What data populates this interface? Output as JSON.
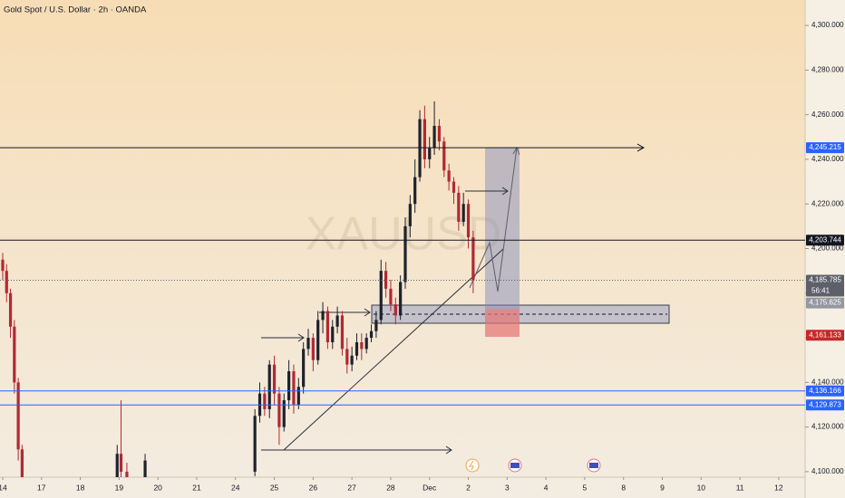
{
  "chart_data": {
    "type": "candlestick",
    "title": "Gold Spot / U.S. Dollar · 2h · OANDA",
    "watermark": "XAUUSD",
    "up_color": "#1e222d",
    "down_color": "#b22833",
    "xlim": [
      -0.07,
      20.68
    ],
    "ylim": [
      4088.2,
      4311.4
    ],
    "xticks": [
      {
        "value": 0,
        "label": "14"
      },
      {
        "value": 1,
        "label": "17"
      },
      {
        "value": 2,
        "label": "18"
      },
      {
        "value": 3,
        "label": "19"
      },
      {
        "value": 4,
        "label": "20"
      },
      {
        "value": 5,
        "label": "21"
      },
      {
        "value": 6,
        "label": "24"
      },
      {
        "value": 7,
        "label": "25"
      },
      {
        "value": 8,
        "label": "26"
      },
      {
        "value": 9,
        "label": "27"
      },
      {
        "value": 10,
        "label": "28"
      },
      {
        "value": 11,
        "label": "Dec"
      },
      {
        "value": 12,
        "label": "2"
      },
      {
        "value": 13,
        "label": "3"
      },
      {
        "value": 14,
        "label": "4"
      },
      {
        "value": 15,
        "label": "5"
      },
      {
        "value": 16,
        "label": "8"
      },
      {
        "value": 17,
        "label": "9"
      },
      {
        "value": 18,
        "label": "10"
      },
      {
        "value": 19,
        "label": "11"
      },
      {
        "value": 20,
        "label": "12"
      }
    ],
    "yticks": [
      {
        "value": 4100,
        "label": "4,100.000"
      },
      {
        "value": 4120,
        "label": "4,120.000"
      },
      {
        "value": 4140,
        "label": "4,140.000"
      },
      {
        "value": 4160,
        "label": "4,160.000"
      },
      {
        "value": 4180,
        "label": "4,180.000"
      },
      {
        "value": 4200,
        "label": "4,200.000"
      },
      {
        "value": 4220,
        "label": "4,220.000"
      },
      {
        "value": 4240,
        "label": "4,240.000"
      },
      {
        "value": 4260,
        "label": "4,260.000"
      },
      {
        "value": 4280,
        "label": "4,280.000"
      },
      {
        "value": 4300,
        "label": "4,300.000"
      }
    ],
    "x": [
      0,
      0.1,
      0.2,
      0.3,
      0.4,
      0.5,
      2.95,
      3.05,
      3.2,
      3.67,
      6.5,
      6.625,
      6.75,
      6.875,
      7,
      7.125,
      7.25,
      7.375,
      7.5,
      7.625,
      7.75,
      7.875,
      8,
      8.125,
      8.25,
      8.375,
      8.5,
      8.625,
      8.75,
      8.875,
      9,
      9.125,
      9.25,
      9.375,
      9.5,
      9.625,
      9.75,
      9.875,
      10,
      10.125,
      10.25,
      10.375,
      10.5,
      10.625,
      10.75,
      10.875,
      11,
      11.125,
      11.25,
      11.375,
      11.5,
      11.625,
      11.75,
      11.875,
      12,
      12.125
    ],
    "open": [
      4195,
      4190,
      4180,
      4165,
      4140,
      4110,
      4095,
      4108,
      4100,
      4095,
      4100,
      4125,
      4135,
      4128,
      4148,
      4135,
      4120,
      4132,
      4145,
      4130,
      4138,
      4155,
      4160,
      4150,
      4168,
      4172,
      4158,
      4165,
      4170,
      4155,
      4148,
      4152,
      4158,
      4155,
      4160,
      4163,
      4168,
      4190,
      4182,
      4175,
      4170,
      4185,
      4210,
      4220,
      4232,
      4258,
      4240,
      4245,
      4255,
      4248,
      4235,
      4230,
      4225,
      4212,
      4220,
      4205
    ],
    "high": [
      4198,
      4193,
      4182,
      4168,
      4142,
      4112,
      4112,
      4132,
      4104,
      4108,
      4128,
      4140,
      4138,
      4150,
      4152,
      4138,
      4135,
      4150,
      4148,
      4142,
      4158,
      4164,
      4162,
      4172,
      4176,
      4174,
      4168,
      4174,
      4172,
      4160,
      4156,
      4162,
      4162,
      4162,
      4166,
      4172,
      4195,
      4194,
      4186,
      4178,
      4188,
      4214,
      4224,
      4240,
      4262,
      4264,
      4250,
      4266,
      4258,
      4250,
      4238,
      4232,
      4228,
      4225,
      4222,
      4208
    ],
    "low": [
      4186,
      4176,
      4160,
      4135,
      4105,
      4090,
      4090,
      4095,
      4092,
      4090,
      4098,
      4122,
      4125,
      4124,
      4130,
      4112,
      4118,
      4128,
      4126,
      4128,
      4135,
      4152,
      4145,
      4148,
      4162,
      4155,
      4155,
      4162,
      4152,
      4144,
      4145,
      4150,
      4150,
      4153,
      4158,
      4160,
      4166,
      4178,
      4172,
      4166,
      4168,
      4182,
      4205,
      4216,
      4230,
      4236,
      4236,
      4242,
      4244,
      4232,
      4226,
      4220,
      4208,
      4210,
      4200,
      4180
    ],
    "close": [
      4190,
      4180,
      4165,
      4140,
      4110,
      4095,
      4108,
      4100,
      4095,
      4105,
      4125,
      4135,
      4128,
      4148,
      4135,
      4120,
      4132,
      4145,
      4130,
      4138,
      4155,
      4160,
      4150,
      4168,
      4172,
      4158,
      4165,
      4170,
      4155,
      4148,
      4152,
      4158,
      4155,
      4160,
      4163,
      4168,
      4190,
      4182,
      4175,
      4170,
      4185,
      4210,
      4220,
      4232,
      4258,
      4240,
      4245,
      4255,
      4248,
      4235,
      4230,
      4225,
      4212,
      4220,
      4205,
      4185.785
    ],
    "price_levels": [
      {
        "value": 4245.215,
        "label": "4,245.215",
        "color": "#2962ff",
        "line": "arrow"
      },
      {
        "value": 4203.744,
        "label": "4,203.744",
        "color": "#131722",
        "line": "solid"
      },
      {
        "value": 4185.785,
        "label": "4,185.785",
        "color": "#5d606b",
        "line": "dotted",
        "countdown": "56:41"
      },
      {
        "value": 4175.625,
        "label": "4,175.625",
        "color": "#9598a1"
      },
      {
        "value": 4161.133,
        "label": "4,161.133",
        "color": "#c62828"
      },
      {
        "value": 4136.166,
        "label": "4,136.166",
        "color": "#2962ff",
        "line": "solid"
      },
      {
        "value": 4129.873,
        "label": "4,129.873",
        "color": "#2962ff",
        "line": "solid"
      }
    ]
  }
}
